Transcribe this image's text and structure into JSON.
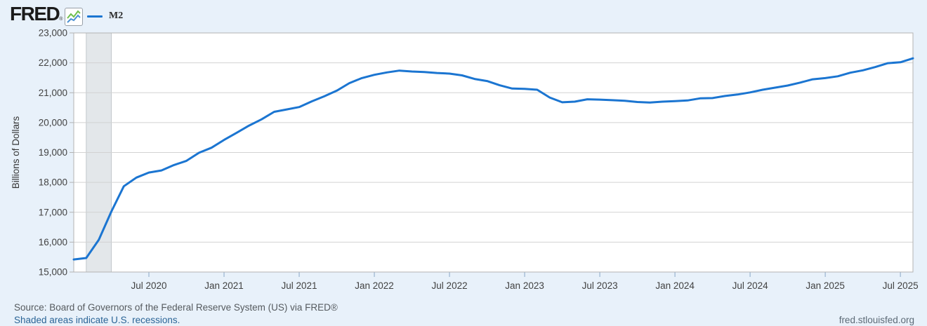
{
  "header": {
    "logo_text": "FRED",
    "logo_reg": "®",
    "legend": {
      "series_label": "M2"
    }
  },
  "footer": {
    "source_line": "Source: Board of Governors of the Federal Reserve System (US) via FRED®",
    "recession_note": "Shaded areas indicate U.S. recessions.",
    "site_link": "fred.stlouisfed.org"
  },
  "colors": {
    "page_background": "#e8f1fa",
    "plot_background": "#ffffff",
    "plot_border": "#b3b3b3",
    "gridline": "#d2d2d2",
    "recession_band": "#e3e7ea",
    "recession_band_edge": "#c2c7cb",
    "series_line": "#1b75d1",
    "axis_text": "#424242",
    "x_tick_mark": "#a9c0d8",
    "icon_green": "#6fbf4d",
    "icon_blue": "#4a90d2"
  },
  "chart_data": {
    "type": "line",
    "title": "M2",
    "ylabel": "Billions of Dollars",
    "ylim": [
      15000,
      23000
    ],
    "ytick_step": 1000,
    "ytick_labels": [
      "15,000",
      "16,000",
      "17,000",
      "18,000",
      "19,000",
      "20,000",
      "21,000",
      "22,000",
      "23,000"
    ],
    "grid": "horizontal",
    "legend_position": "top-left",
    "x_start": "2020-01",
    "x_end": "2025-08",
    "x_months": 68,
    "xticks": [
      {
        "label": "Jul 2020",
        "month_index": 6
      },
      {
        "label": "Jan 2021",
        "month_index": 12
      },
      {
        "label": "Jul 2021",
        "month_index": 18
      },
      {
        "label": "Jan 2022",
        "month_index": 24
      },
      {
        "label": "Jul 2022",
        "month_index": 30
      },
      {
        "label": "Jan 2023",
        "month_index": 36
      },
      {
        "label": "Jul 2023",
        "month_index": 42
      },
      {
        "label": "Jan 2024",
        "month_index": 48
      },
      {
        "label": "Jul 2024",
        "month_index": 54
      },
      {
        "label": "Jan 2025",
        "month_index": 60
      },
      {
        "label": "Jul 2025",
        "month_index": 66
      }
    ],
    "recession_bands": [
      {
        "from_month_index": 1,
        "to_month_index": 3,
        "note": "Feb 2020 - Apr 2020"
      }
    ],
    "series": [
      {
        "name": "M2",
        "units": "Billions of Dollars",
        "values": [
          15420,
          15470,
          16080,
          17020,
          17870,
          18160,
          18330,
          18400,
          18580,
          18720,
          18990,
          19160,
          19420,
          19660,
          19900,
          20110,
          20360,
          20440,
          20520,
          20710,
          20880,
          21070,
          21320,
          21490,
          21600,
          21680,
          21740,
          21710,
          21690,
          21660,
          21640,
          21580,
          21460,
          21390,
          21250,
          21140,
          21130,
          21100,
          20840,
          20680,
          20700,
          20780,
          20770,
          20750,
          20730,
          20690,
          20670,
          20700,
          20720,
          20740,
          20810,
          20820,
          20890,
          20940,
          21010,
          21100,
          21170,
          21240,
          21340,
          21450,
          21490,
          21550,
          21670,
          21750,
          21860,
          21990,
          22020,
          22150
        ]
      }
    ]
  }
}
